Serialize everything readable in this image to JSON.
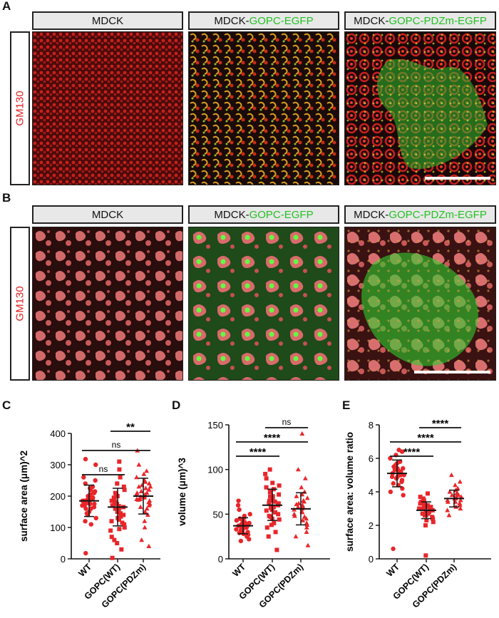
{
  "panels": {
    "A": "A",
    "B": "B",
    "C": "C",
    "D": "D",
    "E": "E"
  },
  "headers": {
    "mdck": "MDCK",
    "mdck_prefix": "MDCK-",
    "gopc": "GOPC-EGFP",
    "gopc_pdzm": "GOPC-PDZm-EGFP"
  },
  "row_label": "GM130",
  "colors": {
    "red": "#e02020",
    "green": "#22c022",
    "marker": "#e8262a"
  },
  "groups": [
    "WT",
    "GOPC(WT)",
    "GOPC(PDZm)"
  ],
  "chart_data": [
    {
      "type": "scatter",
      "panel": "C",
      "ylabel": "surface area (μm)^2",
      "ylim": [
        0,
        400
      ],
      "yticks": [
        0,
        100,
        200,
        300,
        400
      ],
      "categories": [
        "WT",
        "GOPC(WT)",
        "GOPC(PDZm)"
      ],
      "markers": [
        "circle",
        "square",
        "triangle"
      ],
      "series": [
        {
          "mean": 185,
          "sd_low": 135,
          "sd_high": 235,
          "min": 18,
          "max": 318,
          "values": [
            185,
            190,
            175,
            200,
            160,
            210,
            230,
            150,
            180,
            195,
            170,
            205,
            220,
            140,
            165,
            185,
            200,
            240,
            130,
            190,
            175,
            210,
            185,
            160,
            250,
            120,
            195,
            180,
            215,
            170,
            145,
            225,
            188,
            178,
            205,
            260,
            110,
            300,
            318,
            18
          ]
        },
        {
          "mean": 165,
          "sd_low": 105,
          "sd_high": 225,
          "min": 3,
          "max": 310,
          "values": [
            165,
            150,
            180,
            200,
            120,
            140,
            175,
            210,
            95,
            160,
            130,
            190,
            230,
            110,
            170,
            145,
            185,
            100,
            155,
            205,
            125,
            175,
            240,
            90,
            135,
            160,
            195,
            115,
            220,
            60,
            70,
            150,
            180,
            260,
            30,
            285,
            310,
            3,
            50,
            168
          ]
        },
        {
          "mean": 200,
          "sd_low": 143,
          "sd_high": 257,
          "min": 40,
          "max": 345,
          "values": [
            200,
            190,
            215,
            180,
            230,
            170,
            245,
            160,
            210,
            225,
            185,
            195,
            270,
            150,
            205,
            175,
            240,
            260,
            140,
            220,
            198,
            188,
            230,
            120,
            280,
            100,
            210,
            250,
            165,
            300,
            345,
            60,
            40,
            235,
            190,
            205
          ]
        }
      ],
      "comparisons": [
        {
          "a": "WT",
          "b": "GOPC(WT)",
          "label": "ns"
        },
        {
          "a": "WT",
          "b": "GOPC(PDZm)",
          "label": "ns"
        },
        {
          "a": "GOPC(WT)",
          "b": "GOPC(PDZm)",
          "label": "**"
        }
      ]
    },
    {
      "type": "scatter",
      "panel": "D",
      "ylabel": "volume (μm)^3",
      "ylim": [
        0,
        150
      ],
      "yticks": [
        0,
        50,
        100,
        150
      ],
      "categories": [
        "WT",
        "GOPC(WT)",
        "GOPC(PDZm)"
      ],
      "markers": [
        "circle",
        "square",
        "triangle"
      ],
      "series": [
        {
          "mean": 37,
          "sd_low": 28,
          "sd_high": 46,
          "min": 20,
          "max": 65,
          "values": [
            37,
            35,
            40,
            32,
            45,
            30,
            38,
            42,
            28,
            36,
            33,
            48,
            41,
            34,
            39,
            31,
            44,
            29,
            50,
            36,
            38,
            27,
            43,
            35,
            40,
            55,
            25,
            60,
            22,
            65,
            20,
            37,
            33,
            39,
            46
          ]
        },
        {
          "mean": 60,
          "sd_low": 43,
          "sd_high": 78,
          "min": 10,
          "max": 100,
          "values": [
            60,
            55,
            70,
            45,
            80,
            50,
            65,
            75,
            40,
            58,
            85,
            48,
            62,
            72,
            35,
            52,
            90,
            44,
            68,
            57,
            78,
            38,
            66,
            95,
            30,
            100,
            25,
            10,
            82,
            62,
            54,
            70,
            47,
            64
          ]
        },
        {
          "mean": 56,
          "sd_low": 38,
          "sd_high": 74,
          "min": 15,
          "max": 140,
          "values": [
            56,
            50,
            62,
            45,
            70,
            40,
            58,
            75,
            48,
            65,
            38,
            53,
            80,
            43,
            60,
            68,
            35,
            55,
            90,
            30,
            100,
            25,
            15,
            140,
            64,
            52,
            47,
            72,
            58,
            61
          ]
        }
      ],
      "comparisons": [
        {
          "a": "WT",
          "b": "GOPC(WT)",
          "label": "****"
        },
        {
          "a": "WT",
          "b": "GOPC(PDZm)",
          "label": "****"
        },
        {
          "a": "GOPC(WT)",
          "b": "GOPC(PDZm)",
          "label": "ns"
        }
      ]
    },
    {
      "type": "scatter",
      "panel": "E",
      "ylabel": "surface area: volume ratio",
      "ylim": [
        0,
        8
      ],
      "yticks": [
        0,
        2,
        4,
        6,
        8
      ],
      "categories": [
        "WT",
        "GOPC(WT)",
        "GOPC(PDZm)"
      ],
      "markers": [
        "circle",
        "square",
        "triangle"
      ],
      "series": [
        {
          "mean": 5.1,
          "sd_low": 4.3,
          "sd_high": 5.9,
          "min": 0.6,
          "max": 6.5,
          "values": [
            5.1,
            5.0,
            5.3,
            4.8,
            5.5,
            4.6,
            5.2,
            5.7,
            4.9,
            5.4,
            6.0,
            4.4,
            5.1,
            5.6,
            4.7,
            5.3,
            6.2,
            4.5,
            5.0,
            5.8,
            4.2,
            6.4,
            4.0,
            6.5,
            3.8,
            0.6,
            5.2,
            4.9,
            5.4,
            5.1
          ]
        },
        {
          "mean": 2.9,
          "sd_low": 2.4,
          "sd_high": 3.4,
          "min": 0.2,
          "max": 3.9,
          "values": [
            2.9,
            2.8,
            3.1,
            2.6,
            3.3,
            2.5,
            3.0,
            3.5,
            2.7,
            3.2,
            2.3,
            3.6,
            2.9,
            2.4,
            3.4,
            2.8,
            3.7,
            2.2,
            3.1,
            2.6,
            3.9,
            2.0,
            0.2,
            3.0,
            2.9,
            3.3,
            2.7,
            3.1
          ]
        },
        {
          "mean": 3.6,
          "sd_low": 3.1,
          "sd_high": 4.1,
          "min": 2.6,
          "max": 5.0,
          "values": [
            3.6,
            3.5,
            3.8,
            3.3,
            4.0,
            3.2,
            3.7,
            4.2,
            3.4,
            3.9,
            3.0,
            4.4,
            3.6,
            3.1,
            4.1,
            3.5,
            4.6,
            2.9,
            3.8,
            3.3,
            5.0,
            2.6,
            3.7,
            3.4,
            3.9,
            3.6
          ]
        }
      ],
      "comparisons": [
        {
          "a": "WT",
          "b": "GOPC(WT)",
          "label": "****"
        },
        {
          "a": "WT",
          "b": "GOPC(PDZm)",
          "label": "****"
        },
        {
          "a": "GOPC(WT)",
          "b": "GOPC(PDZm)",
          "label": "****"
        }
      ]
    }
  ]
}
